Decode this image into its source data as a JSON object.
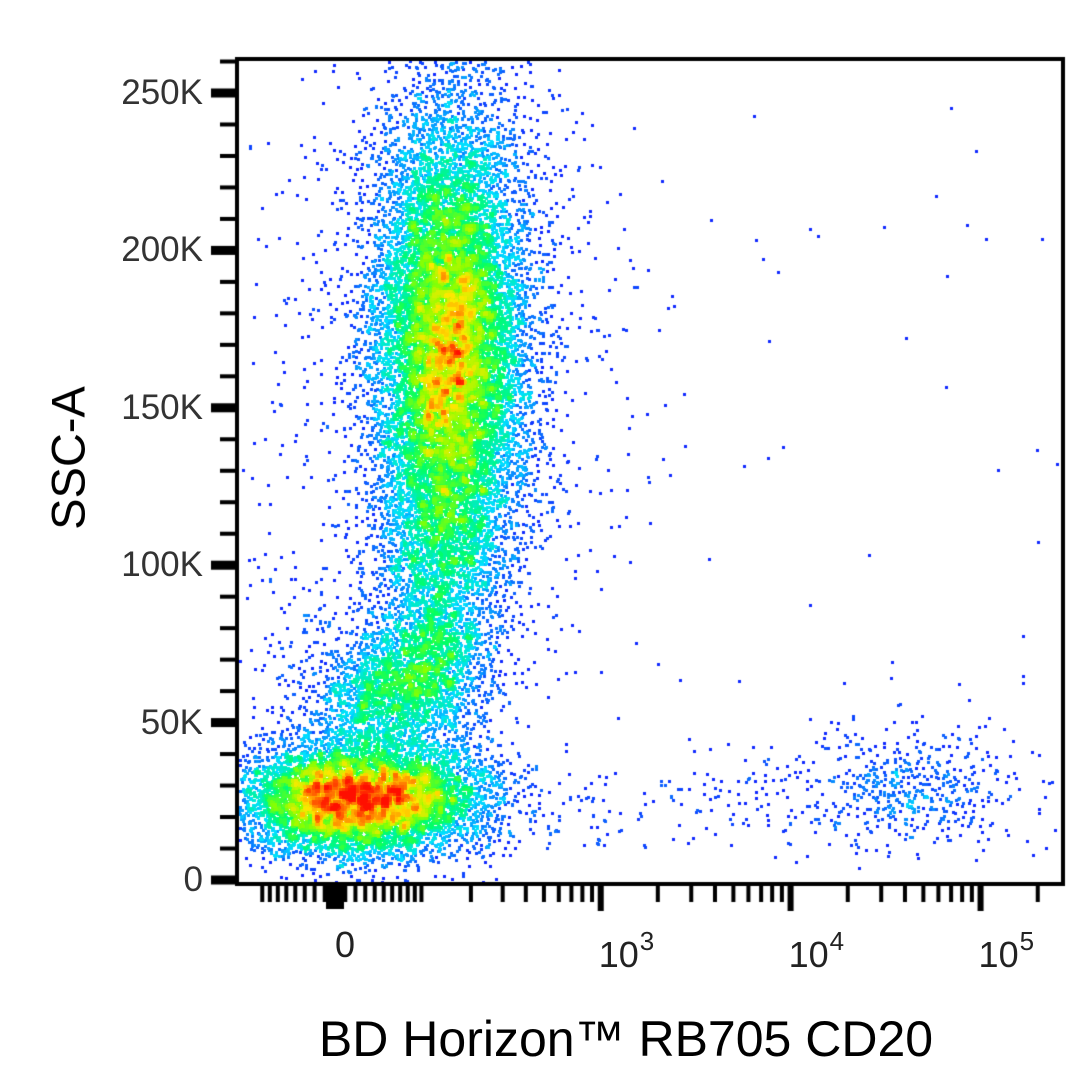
{
  "figure": {
    "x_axis": {
      "title": "BD Horizon™ RB705 CD20",
      "scale": "biexponential",
      "major_ticks": [
        {
          "label": "0",
          "value": 0
        },
        {
          "base": "10",
          "exp": "3",
          "value": 1000
        },
        {
          "base": "10",
          "exp": "4",
          "value": 10000
        },
        {
          "base": "10",
          "exp": "5",
          "value": 100000
        }
      ],
      "visible_range_low": -130,
      "visible_range_high": 300000
    },
    "y_axis": {
      "title": "SSC-A",
      "scale": "linear",
      "major_ticks": [
        {
          "label": "0",
          "value_k": 0
        },
        {
          "label": "50K",
          "value_k": 50
        },
        {
          "label": "100K",
          "value_k": 100
        },
        {
          "label": "150K",
          "value_k": 150
        },
        {
          "label": "200K",
          "value_k": 200
        },
        {
          "label": "250K",
          "value_k": 250
        }
      ],
      "minor_tick_step_k": 10,
      "visible_range_low_k": 0,
      "visible_range_high_k": 262
    }
  },
  "chart_data": {
    "type": "scatter",
    "subtype": "flow-cytometry-pseudocolor-density",
    "title": "",
    "xlabel": "BD Horizon™ RB705 CD20",
    "ylabel": "SSC-A",
    "x_ticks": [
      "0",
      "10^3",
      "10^4",
      "10^5"
    ],
    "y_ticks": [
      "0",
      "50K",
      "100K",
      "150K",
      "200K",
      "250K"
    ],
    "grid": false,
    "legend": false,
    "colormap_stops": [
      [
        0.0,
        "#2000ff"
      ],
      [
        0.08,
        "#1500ff"
      ],
      [
        0.35,
        "#00e0ff"
      ],
      [
        0.52,
        "#00ff66"
      ],
      [
        0.68,
        "#8aff00"
      ],
      [
        0.8,
        "#ffe800"
      ],
      [
        0.9,
        "#ff7a00"
      ],
      [
        1.0,
        "#ff0f00"
      ]
    ],
    "populations": [
      {
        "name": "cd20neg-granulocyte-main",
        "type": "gauss",
        "cd20": 150,
        "sigma_u": 0.44,
        "ssc_k": 168,
        "sigma_k": 37.5,
        "count": 15000
      },
      {
        "name": "cd20neg-granulocyte-halo",
        "type": "gauss",
        "cd20": 150,
        "sigma_u": 0.8,
        "ssc_k": 170,
        "sigma_k": 50,
        "count": 1600
      },
      {
        "name": "cd20neg-granulocyte-taper",
        "type": "gauss",
        "cd20": 128,
        "sigma_u": 0.36,
        "ssc_k": 103,
        "sigma_k": 17,
        "count": 1100
      },
      {
        "name": "granulo-mono-bridge",
        "type": "gauss",
        "cd20": 110,
        "sigma_u": 0.42,
        "ssc_k": 73,
        "sigma_k": 16,
        "count": 420
      },
      {
        "name": "monocyte-low",
        "type": "gauss",
        "cd20": 45,
        "sigma_u": 0.42,
        "ssc_k": 55,
        "sigma_k": 9.5,
        "count": 900
      },
      {
        "name": "monocyte-mid",
        "type": "gauss",
        "cd20": 78,
        "sigma_u": 0.4,
        "ssc_k": 63,
        "sigma_k": 10,
        "count": 1000
      },
      {
        "name": "monocyte-high",
        "type": "gauss",
        "cd20": 118,
        "sigma_u": 0.35,
        "ssc_k": 71,
        "sigma_k": 10,
        "count": 650
      },
      {
        "name": "lymphocyte-core",
        "type": "gauss",
        "cd20": 16,
        "sigma_u": 0.6,
        "ssc_k": 25.5,
        "sigma_k": 8.6,
        "count": 6500
      },
      {
        "name": "lymphocyte-right",
        "type": "gauss",
        "cd20": 113,
        "sigma_u": 0.5,
        "ssc_k": 27,
        "sigma_k": 9.5,
        "count": 1600
      },
      {
        "name": "lymphocyte-left",
        "type": "gauss",
        "cd20": -35,
        "sigma_u": 0.45,
        "ssc_k": 26,
        "sigma_k": 9,
        "count": 650
      },
      {
        "name": "left-scatter",
        "type": "gauss",
        "cd20": -20,
        "sigma_u": 0.5,
        "ssc_k": 58,
        "sigma_k": 20,
        "count": 280
      },
      {
        "name": "cd20pos-bcells",
        "type": "gauss",
        "cd20": 40000,
        "sigma_u": 0.65,
        "ssc_k": 28.5,
        "sigma_k": 8.5,
        "count": 430
      },
      {
        "name": "cd20pos-bcells-halo",
        "type": "gauss",
        "cd20": 40000,
        "sigma_u": 1.05,
        "ssc_k": 30,
        "sigma_k": 13,
        "count": 140
      },
      {
        "name": "low-ssc-band",
        "type": "band",
        "cd20_min": 240,
        "cd20_max": 12000,
        "ssc_min_k": 10,
        "ssc_max_k": 34,
        "count": 140
      },
      {
        "name": "sparse-background",
        "type": "band",
        "cd20_min": -110,
        "cd20_max": 260000,
        "ssc_min_k": 4,
        "ssc_max_k": 255,
        "count": 85
      },
      {
        "name": "right-column-scatter",
        "type": "column",
        "cd20": 840,
        "sigma_u": 0.5,
        "ssc_min_k": 30,
        "ssc_max_k": 240,
        "count": 70
      },
      {
        "name": "left-column-scatter",
        "type": "column",
        "cd20": -49,
        "sigma_u": 0.33,
        "ssc_min_k": 85,
        "ssc_max_k": 235,
        "count": 55
      }
    ]
  }
}
